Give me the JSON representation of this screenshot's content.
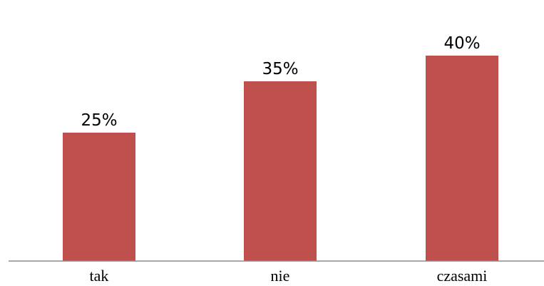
{
  "chart_data": {
    "type": "bar",
    "categories": [
      "tak",
      "nie",
      "czasami"
    ],
    "values": [
      25,
      35,
      40
    ],
    "value_labels": [
      "25%",
      "35%",
      "40%"
    ],
    "ylim": [
      0,
      50
    ],
    "grid": false,
    "legend": "none",
    "colors": {
      "bar": "#c0504d",
      "axis": "#8c8c8c"
    }
  }
}
